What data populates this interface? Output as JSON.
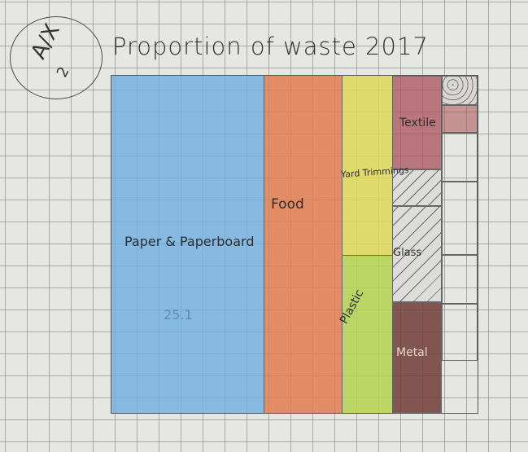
{
  "title": "Proportion of waste 2017",
  "badge": {
    "main": "A/X",
    "sub": "2"
  },
  "categories": {
    "paper": "Paper & Paperboard",
    "paper_value": "25.1",
    "food": "Food",
    "yard": "Yard Trimmings",
    "plastic": "Plastic",
    "textile": "Textile",
    "glass": "Glass",
    "metal": "Metal"
  },
  "colors": {
    "paper": "#6fafe1",
    "food": "#e17d50",
    "yard": "#ded755",
    "plastic": "#b4d250",
    "textile": "#aa505a",
    "metal": "#6e3c37"
  }
}
